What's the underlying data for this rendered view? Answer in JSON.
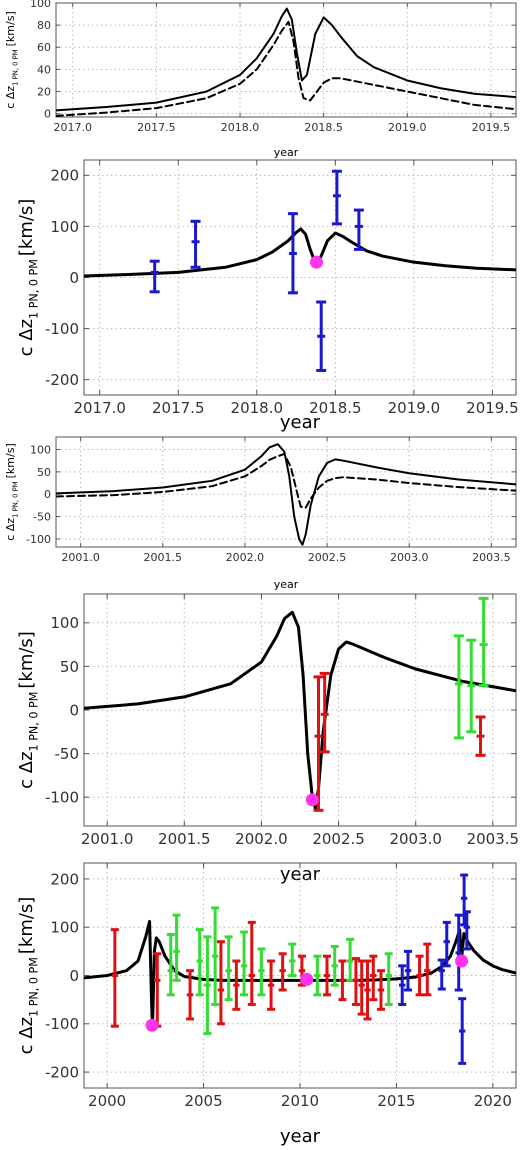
{
  "chart_data": [
    {
      "type": "line",
      "xlabel": "year",
      "ylabel": "c Δz",
      "ylabel_sub": "1 PN, 0 PM",
      "ylabel_unit": "[km/s]",
      "xlim": [
        2016.9,
        2019.65
      ],
      "ylim": [
        -3,
        100
      ],
      "xticks": [
        2017.0,
        2017.5,
        2018.0,
        2018.5,
        2019.0,
        2019.5
      ],
      "xtick_labels": [
        "2017.0",
        "2017.5",
        "2018.0",
        "2018.5",
        "2019.0",
        "2019.5"
      ],
      "yticks": [
        0,
        20,
        40,
        60,
        80,
        100
      ],
      "ytick_labels": [
        "0",
        "20",
        "40",
        "60",
        "80",
        "100"
      ],
      "grid": true,
      "series": [
        {
          "style": "solid",
          "x": [
            2016.9,
            2017.2,
            2017.5,
            2017.8,
            2018.0,
            2018.1,
            2018.2,
            2018.25,
            2018.28,
            2018.31,
            2018.34,
            2018.37,
            2018.4,
            2018.45,
            2018.5,
            2018.55,
            2018.6,
            2018.7,
            2018.8,
            2019.0,
            2019.2,
            2019.4,
            2019.65
          ],
          "y": [
            3,
            6,
            10,
            20,
            35,
            50,
            72,
            88,
            95,
            85,
            55,
            30,
            35,
            72,
            87,
            80,
            70,
            52,
            42,
            30,
            23,
            18,
            15
          ]
        },
        {
          "style": "dashed",
          "x": [
            2016.9,
            2017.2,
            2017.5,
            2017.8,
            2018.0,
            2018.1,
            2018.2,
            2018.25,
            2018.29,
            2018.32,
            2018.35,
            2018.38,
            2018.42,
            2018.46,
            2018.5,
            2018.55,
            2018.6,
            2018.7,
            2018.8,
            2019.0,
            2019.2,
            2019.4,
            2019.65
          ],
          "y": [
            -2,
            1,
            5,
            14,
            27,
            40,
            62,
            75,
            83,
            65,
            32,
            14,
            12,
            20,
            28,
            32,
            32,
            29,
            26,
            20,
            14,
            8,
            4
          ]
        }
      ],
      "points": [],
      "errorbars": []
    },
    {
      "type": "line",
      "xlabel": "year",
      "ylabel": "c Δz",
      "ylabel_sub": "1 PN, 0 PM",
      "ylabel_unit": "[km/s]",
      "xlim": [
        2016.9,
        2019.65
      ],
      "ylim": [
        -230,
        230
      ],
      "xticks": [
        2017.0,
        2017.5,
        2018.0,
        2018.5,
        2019.0,
        2019.5
      ],
      "xtick_labels": [
        "2017.0",
        "2017.5",
        "2018.0",
        "2018.5",
        "2019.0",
        "2019.5"
      ],
      "yticks": [
        -200,
        -100,
        0,
        100,
        200
      ],
      "ytick_labels": [
        "-200",
        "-100",
        "0",
        "100",
        "200"
      ],
      "grid": true,
      "series": [
        {
          "style": "solid",
          "x": [
            2016.9,
            2017.2,
            2017.5,
            2017.8,
            2018.0,
            2018.1,
            2018.2,
            2018.25,
            2018.28,
            2018.31,
            2018.34,
            2018.37,
            2018.4,
            2018.45,
            2018.5,
            2018.55,
            2018.6,
            2018.7,
            2018.8,
            2019.0,
            2019.2,
            2019.4,
            2019.65
          ],
          "y": [
            3,
            6,
            10,
            20,
            35,
            50,
            72,
            88,
            95,
            85,
            55,
            30,
            35,
            72,
            87,
            80,
            70,
            52,
            42,
            30,
            23,
            18,
            15
          ]
        }
      ],
      "points": [
        {
          "x": 2018.38,
          "y": 30,
          "color": "#ff33ee"
        }
      ],
      "errorbars": [
        {
          "x": 2017.35,
          "y": 10,
          "lo": -28,
          "hi": 32,
          "color": "#1a1acc"
        },
        {
          "x": 2017.61,
          "y": 70,
          "lo": 20,
          "hi": 110,
          "color": "#1a1acc"
        },
        {
          "x": 2018.23,
          "y": 47,
          "lo": -30,
          "hi": 125,
          "color": "#1a1acc"
        },
        {
          "x": 2018.41,
          "y": -115,
          "lo": -182,
          "hi": -48,
          "color": "#1a1acc"
        },
        {
          "x": 2018.51,
          "y": 160,
          "lo": 105,
          "hi": 208,
          "color": "#1a1acc"
        },
        {
          "x": 2018.65,
          "y": 100,
          "lo": 55,
          "hi": 132,
          "color": "#1a1acc"
        }
      ]
    },
    {
      "type": "line",
      "xlabel": "year",
      "ylabel": "c Δz",
      "ylabel_sub": "1 PN, 0 PM",
      "ylabel_unit": "[km/s]",
      "xlim": [
        2000.85,
        2003.65
      ],
      "ylim": [
        -118,
        128
      ],
      "xticks": [
        2001.0,
        2001.5,
        2002.0,
        2002.5,
        2003.0,
        2003.5
      ],
      "xtick_labels": [
        "2001.0",
        "2001.5",
        "2002.0",
        "2002.5",
        "2003.0",
        "2003.5"
      ],
      "yticks": [
        -100,
        -50,
        0,
        50,
        100
      ],
      "ytick_labels": [
        "-100",
        "-50",
        "0",
        "50",
        "100"
      ],
      "grid": true,
      "series": [
        {
          "style": "solid",
          "x": [
            2000.85,
            2001.2,
            2001.5,
            2001.8,
            2002.0,
            2002.1,
            2002.15,
            2002.2,
            2002.24,
            2002.27,
            2002.3,
            2002.33,
            2002.35,
            2002.37,
            2002.4,
            2002.45,
            2002.5,
            2002.55,
            2002.6,
            2002.8,
            2003.0,
            2003.3,
            2003.65
          ],
          "y": [
            2,
            7,
            15,
            30,
            55,
            85,
            105,
            112,
            95,
            40,
            -50,
            -100,
            -113,
            -90,
            -25,
            40,
            70,
            78,
            75,
            60,
            47,
            33,
            22
          ]
        },
        {
          "style": "dashed",
          "x": [
            2000.85,
            2001.2,
            2001.5,
            2001.8,
            2002.0,
            2002.1,
            2002.15,
            2002.2,
            2002.24,
            2002.28,
            2002.32,
            2002.34,
            2002.37,
            2002.4,
            2002.45,
            2002.5,
            2002.55,
            2002.6,
            2002.8,
            2003.0,
            2003.3,
            2003.65
          ],
          "y": [
            -5,
            -2,
            5,
            18,
            40,
            63,
            77,
            85,
            90,
            60,
            0,
            -28,
            -30,
            -10,
            15,
            30,
            36,
            38,
            33,
            25,
            16,
            8
          ]
        }
      ],
      "points": [],
      "errorbars": []
    },
    {
      "type": "line",
      "xlabel": "year",
      "ylabel": "c Δz",
      "ylabel_sub": "1 PN, 0 PM",
      "ylabel_unit": "[km/s]",
      "xlim": [
        2000.85,
        2003.65
      ],
      "ylim": [
        -133,
        133
      ],
      "xticks": [
        2001.0,
        2001.5,
        2002.0,
        2002.5,
        2003.0,
        2003.5
      ],
      "xtick_labels": [
        "2001.0",
        "2001.5",
        "2002.0",
        "2002.5",
        "2003.0",
        "2003.5"
      ],
      "yticks": [
        -100,
        -50,
        0,
        50,
        100
      ],
      "ytick_labels": [
        "-100",
        "-50",
        "0",
        "50",
        "100"
      ],
      "grid": true,
      "series": [
        {
          "style": "solid",
          "x": [
            2000.85,
            2001.2,
            2001.5,
            2001.8,
            2002.0,
            2002.1,
            2002.15,
            2002.2,
            2002.24,
            2002.27,
            2002.3,
            2002.33,
            2002.35,
            2002.37,
            2002.4,
            2002.45,
            2002.5,
            2002.55,
            2002.6,
            2002.8,
            2003.0,
            2003.3,
            2003.65
          ],
          "y": [
            2,
            7,
            15,
            30,
            55,
            85,
            105,
            112,
            95,
            40,
            -50,
            -100,
            -113,
            -90,
            -25,
            40,
            70,
            78,
            75,
            60,
            47,
            33,
            22
          ]
        }
      ],
      "points": [
        {
          "x": 2002.33,
          "y": -103,
          "color": "#ff33ee"
        }
      ],
      "errorbars": [
        {
          "x": 2002.37,
          "y": -30,
          "lo": -115,
          "hi": 38,
          "color": "#dd1111"
        },
        {
          "x": 2002.41,
          "y": -5,
          "lo": -48,
          "hi": 42,
          "color": "#dd1111"
        },
        {
          "x": 2003.28,
          "y": 30,
          "lo": -32,
          "hi": 85,
          "color": "#33dd33"
        },
        {
          "x": 2003.36,
          "y": 28,
          "lo": -25,
          "hi": 80,
          "color": "#33dd33"
        },
        {
          "x": 2003.42,
          "y": -30,
          "lo": -52,
          "hi": -8,
          "color": "#dd1111"
        },
        {
          "x": 2003.44,
          "y": 75,
          "lo": 28,
          "hi": 128,
          "color": "#33dd33"
        }
      ]
    },
    {
      "type": "line",
      "xlabel": "year",
      "ylabel": "c Δz",
      "ylabel_sub": "1 PN, 0 PM",
      "ylabel_unit": "[km/s]",
      "xlim": [
        1998.8,
        2021.2
      ],
      "ylim": [
        -233,
        233
      ],
      "xticks": [
        2000,
        2005,
        2010,
        2015,
        2020
      ],
      "xtick_labels": [
        "2000",
        "2005",
        "2010",
        "2015",
        "2020"
      ],
      "yticks": [
        -200,
        -100,
        0,
        100,
        200
      ],
      "ytick_labels": [
        "-200",
        "-100",
        "0",
        "100",
        "200"
      ],
      "grid": true,
      "series": [
        {
          "style": "solid",
          "x": [
            1998.8,
            2000.0,
            2001.0,
            2001.6,
            2002.0,
            2002.2,
            2002.3,
            2002.35,
            2002.45,
            2002.55,
            2002.7,
            2003.0,
            2003.5,
            2004.0,
            2005,
            2006,
            2007,
            2008,
            2009,
            2010,
            2011,
            2012,
            2013,
            2014,
            2015,
            2016,
            2016.8,
            2017.4,
            2017.8,
            2018.1,
            2018.28,
            2018.37,
            2018.5,
            2018.7,
            2019.0,
            2019.5,
            2020.0,
            2020.5,
            2021.2
          ],
          "y": [
            -5,
            0,
            10,
            30,
            80,
            112,
            -50,
            -110,
            50,
            78,
            70,
            40,
            10,
            -2,
            -8,
            -10,
            -10,
            -10,
            -10,
            -10,
            -10,
            -10,
            -10,
            -9,
            -7,
            -3,
            5,
            20,
            40,
            72,
            95,
            30,
            87,
            70,
            52,
            32,
            20,
            12,
            5
          ]
        }
      ],
      "points": [
        {
          "x": 2002.33,
          "y": -103,
          "color": "#ff33ee"
        },
        {
          "x": 2010.35,
          "y": -8,
          "color": "#ff33ee"
        },
        {
          "x": 2018.38,
          "y": 30,
          "color": "#ff33ee"
        }
      ],
      "errorbars": [
        {
          "x": 2000.4,
          "y": 0,
          "lo": -105,
          "hi": 95,
          "color": "#dd1111"
        },
        {
          "x": 2002.6,
          "y": -10,
          "lo": -105,
          "hi": 45,
          "color": "#dd1111"
        },
        {
          "x": 2003.3,
          "y": 10,
          "lo": -40,
          "hi": 85,
          "color": "#33dd33"
        },
        {
          "x": 2003.6,
          "y": 50,
          "lo": -10,
          "hi": 125,
          "color": "#33dd33"
        },
        {
          "x": 2004.3,
          "y": -40,
          "lo": -90,
          "hi": 10,
          "color": "#dd1111"
        },
        {
          "x": 2004.8,
          "y": 30,
          "lo": -40,
          "hi": 95,
          "color": "#33dd33"
        },
        {
          "x": 2005.2,
          "y": -20,
          "lo": -120,
          "hi": 80,
          "color": "#33dd33"
        },
        {
          "x": 2005.6,
          "y": 40,
          "lo": -60,
          "hi": 140,
          "color": "#33dd33"
        },
        {
          "x": 2005.9,
          "y": -30,
          "lo": -100,
          "hi": 70,
          "color": "#dd1111"
        },
        {
          "x": 2006.3,
          "y": 10,
          "lo": -50,
          "hi": 80,
          "color": "#33dd33"
        },
        {
          "x": 2006.7,
          "y": -20,
          "lo": -70,
          "hi": 30,
          "color": "#dd1111"
        },
        {
          "x": 2007.1,
          "y": 20,
          "lo": -40,
          "hi": 90,
          "color": "#33dd33"
        },
        {
          "x": 2007.5,
          "y": 0,
          "lo": -60,
          "hi": 110,
          "color": "#dd1111"
        },
        {
          "x": 2008.0,
          "y": 10,
          "lo": -40,
          "hi": 55,
          "color": "#33dd33"
        },
        {
          "x": 2008.5,
          "y": -20,
          "lo": -70,
          "hi": 30,
          "color": "#dd1111"
        },
        {
          "x": 2009.1,
          "y": 10,
          "lo": -30,
          "hi": 45,
          "color": "#dd1111"
        },
        {
          "x": 2009.6,
          "y": 30,
          "lo": 0,
          "hi": 65,
          "color": "#33dd33"
        },
        {
          "x": 2010.1,
          "y": 10,
          "lo": -20,
          "hi": 40,
          "color": "#dd1111"
        },
        {
          "x": 2010.9,
          "y": 0,
          "lo": -40,
          "hi": 40,
          "color": "#33dd33"
        },
        {
          "x": 2011.4,
          "y": 0,
          "lo": -40,
          "hi": 40,
          "color": "#dd1111"
        },
        {
          "x": 2011.8,
          "y": 20,
          "lo": -20,
          "hi": 60,
          "color": "#33dd33"
        },
        {
          "x": 2012.2,
          "y": -10,
          "lo": -50,
          "hi": 30,
          "color": "#dd1111"
        },
        {
          "x": 2012.6,
          "y": 30,
          "lo": -10,
          "hi": 75,
          "color": "#33dd33"
        },
        {
          "x": 2012.9,
          "y": -10,
          "lo": -60,
          "hi": 35,
          "color": "#dd1111"
        },
        {
          "x": 2013.2,
          "y": -20,
          "lo": -80,
          "hi": 30,
          "color": "#dd1111"
        },
        {
          "x": 2013.5,
          "y": -30,
          "lo": -90,
          "hi": 30,
          "color": "#dd1111"
        },
        {
          "x": 2013.8,
          "y": 0,
          "lo": -50,
          "hi": 40,
          "color": "#dd1111"
        },
        {
          "x": 2014.2,
          "y": -30,
          "lo": -70,
          "hi": 10,
          "color": "#dd1111"
        },
        {
          "x": 2014.6,
          "y": 0,
          "lo": -60,
          "hi": 45,
          "color": "#33dd33"
        },
        {
          "x": 2015.3,
          "y": -20,
          "lo": -60,
          "hi": 20,
          "color": "#1a1acc"
        },
        {
          "x": 2015.6,
          "y": 10,
          "lo": -30,
          "hi": 50,
          "color": "#1a1acc"
        },
        {
          "x": 2016.2,
          "y": 0,
          "lo": -40,
          "hi": 40,
          "color": "#dd1111"
        },
        {
          "x": 2016.6,
          "y": 10,
          "lo": -40,
          "hi": 65,
          "color": "#dd1111"
        },
        {
          "x": 2017.35,
          "y": 10,
          "lo": -28,
          "hi": 32,
          "color": "#1a1acc"
        },
        {
          "x": 2017.61,
          "y": 70,
          "lo": 20,
          "hi": 110,
          "color": "#1a1acc"
        },
        {
          "x": 2018.23,
          "y": 47,
          "lo": -30,
          "hi": 125,
          "color": "#1a1acc"
        },
        {
          "x": 2018.41,
          "y": -115,
          "lo": -182,
          "hi": -48,
          "color": "#1a1acc"
        },
        {
          "x": 2018.51,
          "y": 160,
          "lo": 105,
          "hi": 208,
          "color": "#1a1acc"
        },
        {
          "x": 2018.65,
          "y": 100,
          "lo": 55,
          "hi": 132,
          "color": "#1a1acc"
        }
      ]
    }
  ]
}
